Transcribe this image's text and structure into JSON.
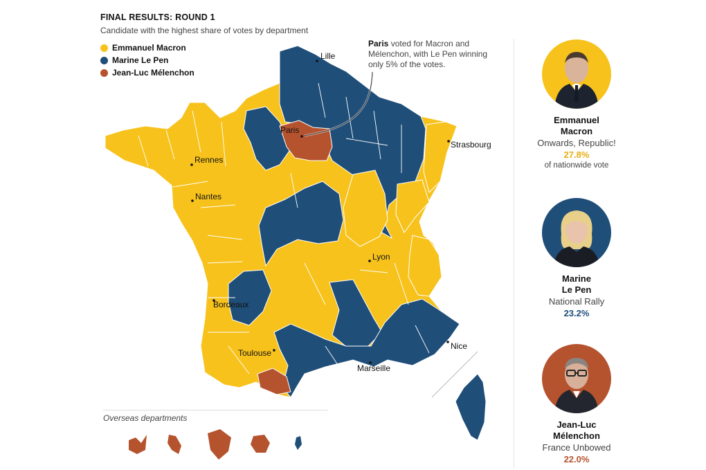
{
  "header": {
    "title": "FINAL RESULTS: ROUND 1",
    "subtitle": "Candidate with the highest share of votes by department"
  },
  "colors": {
    "macron": "#f7c21c",
    "lepen": "#1f4e79",
    "melenchon": "#b5532f"
  },
  "legend": [
    {
      "label": "Emmanuel Macron",
      "color": "#f7c21c"
    },
    {
      "label": "Marine Le Pen",
      "color": "#1f4e79"
    },
    {
      "label": "Jean-Luc Mélenchon",
      "color": "#b5532f"
    }
  ],
  "callout": {
    "bold": "Paris",
    "text": " voted for Macron and Mélenchon, with Le Pen winning only 5% of the votes."
  },
  "cities": [
    "Lille",
    "Paris",
    "Strasbourg",
    "Rennes",
    "Nantes",
    "Lyon",
    "Bordeaux",
    "Toulouse",
    "Marseille",
    "Nice"
  ],
  "overseas": {
    "title": "Overseas departments"
  },
  "candidates": [
    {
      "name_line1": "Emmanuel",
      "name_line2": "Macron",
      "party": "Onwards, Republic!",
      "pct": "27.8%",
      "note": "of nationwide vote",
      "color": "#f7c21c",
      "icon": "person-icon"
    },
    {
      "name_line1": "Marine",
      "name_line2": "Le Pen",
      "party": "National Rally",
      "pct": "23.2%",
      "note": "",
      "color": "#1f4e79",
      "icon": "person-icon"
    },
    {
      "name_line1": "Jean-Luc",
      "name_line2": "Mélenchon",
      "party": "France Unbowed",
      "pct": "22.0%",
      "note": "",
      "color": "#b5532f",
      "icon": "person-icon"
    }
  ]
}
